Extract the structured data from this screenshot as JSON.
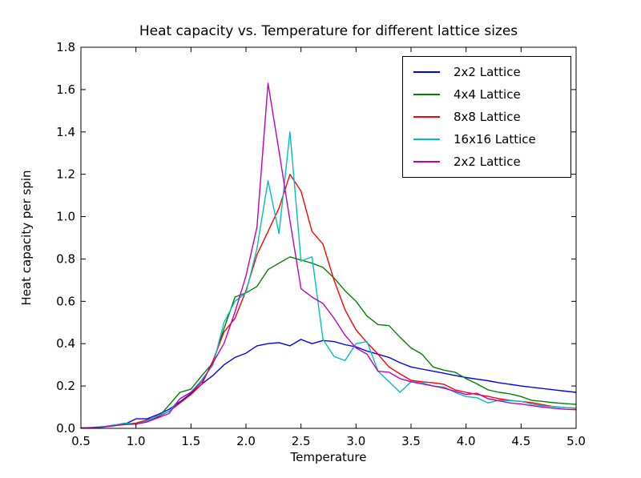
{
  "chart_data": {
    "type": "line",
    "title": "Heat capacity vs. Temperature for different lattice sizes",
    "xlabel": "Temperature",
    "ylabel": "Heat capacity per spin",
    "xlim": [
      0.5,
      5.0
    ],
    "ylim": [
      0.0,
      1.8
    ],
    "xticks": [
      "0.5",
      "1.0",
      "1.5",
      "2.0",
      "2.5",
      "3.0",
      "3.5",
      "4.0",
      "4.5",
      "5.0"
    ],
    "yticks": [
      "0.0",
      "0.2",
      "0.4",
      "0.6",
      "0.8",
      "1.0",
      "1.2",
      "1.4",
      "1.6",
      "1.8"
    ],
    "grid": false,
    "legend_position": "upper right",
    "frame_color": "#000000",
    "background_color": "#ffffff",
    "x": [
      0.5,
      0.6,
      0.7,
      0.8,
      0.9,
      1.0,
      1.1,
      1.2,
      1.3,
      1.4,
      1.5,
      1.6,
      1.7,
      1.8,
      1.9,
      2.0,
      2.1,
      2.2,
      2.3,
      2.4,
      2.5,
      2.6,
      2.7,
      2.8,
      2.9,
      3.0,
      3.1,
      3.2,
      3.3,
      3.4,
      3.5,
      3.6,
      3.7,
      3.8,
      3.9,
      4.0,
      4.1,
      4.2,
      4.3,
      4.4,
      4.5,
      4.6,
      4.7,
      4.8,
      4.9,
      5.0
    ],
    "series": [
      {
        "name": "2x2 Lattice",
        "color": "#0000ff",
        "values": [
          0.002,
          0.004,
          0.008,
          0.015,
          0.02,
          0.045,
          0.045,
          0.065,
          0.09,
          0.125,
          0.165,
          0.21,
          0.25,
          0.3,
          0.335,
          0.355,
          0.39,
          0.4,
          0.405,
          0.39,
          0.42,
          0.4,
          0.415,
          0.41,
          0.395,
          0.385,
          0.365,
          0.35,
          0.335,
          0.31,
          0.29,
          0.28,
          0.27,
          0.26,
          0.25,
          0.24,
          0.232,
          0.225,
          0.215,
          0.208,
          0.2,
          0.194,
          0.188,
          0.182,
          0.176,
          0.17
        ]
      },
      {
        "name": "4x4 Lattice",
        "color": "#008000",
        "values": [
          0.001,
          0.003,
          0.006,
          0.012,
          0.018,
          0.02,
          0.035,
          0.05,
          0.11,
          0.17,
          0.185,
          0.25,
          0.31,
          0.47,
          0.62,
          0.64,
          0.67,
          0.75,
          0.78,
          0.81,
          0.795,
          0.78,
          0.76,
          0.71,
          0.65,
          0.6,
          0.53,
          0.49,
          0.485,
          0.43,
          0.38,
          0.35,
          0.29,
          0.275,
          0.265,
          0.235,
          0.21,
          0.182,
          0.17,
          0.163,
          0.15,
          0.132,
          0.127,
          0.121,
          0.117,
          0.113
        ]
      },
      {
        "name": "8x8 Lattice",
        "color": "#ff0000",
        "values": [
          0.001,
          0.003,
          0.007,
          0.013,
          0.02,
          0.025,
          0.04,
          0.055,
          0.08,
          0.12,
          0.16,
          0.21,
          0.32,
          0.455,
          0.52,
          0.65,
          0.82,
          0.93,
          1.04,
          1.2,
          1.12,
          0.93,
          0.87,
          0.7,
          0.56,
          0.465,
          0.405,
          0.35,
          0.29,
          0.257,
          0.227,
          0.22,
          0.215,
          0.208,
          0.182,
          0.17,
          0.16,
          0.151,
          0.14,
          0.132,
          0.127,
          0.121,
          0.111,
          0.102,
          0.098,
          0.095
        ]
      },
      {
        "name": "16x16 Lattice",
        "color": "#00bfbf",
        "values": [
          0.001,
          0.004,
          0.008,
          0.015,
          0.025,
          0.02,
          0.035,
          0.06,
          0.08,
          0.14,
          0.17,
          0.23,
          0.3,
          0.5,
          0.6,
          0.64,
          0.85,
          1.17,
          0.92,
          1.4,
          0.79,
          0.81,
          0.42,
          0.34,
          0.32,
          0.4,
          0.41,
          0.27,
          0.22,
          0.17,
          0.22,
          0.215,
          0.2,
          0.195,
          0.17,
          0.15,
          0.145,
          0.12,
          0.133,
          0.13,
          0.128,
          0.114,
          0.106,
          0.102,
          0.098,
          0.096
        ]
      },
      {
        "name": "2x2 Lattice",
        "color": "#bf00bf",
        "values": [
          0.001,
          0.003,
          0.006,
          0.012,
          0.02,
          0.02,
          0.03,
          0.05,
          0.07,
          0.14,
          0.17,
          0.22,
          0.31,
          0.4,
          0.55,
          0.72,
          0.95,
          1.63,
          1.31,
          0.98,
          0.66,
          0.62,
          0.59,
          0.52,
          0.44,
          0.38,
          0.35,
          0.27,
          0.265,
          0.235,
          0.22,
          0.21,
          0.2,
          0.19,
          0.175,
          0.16,
          0.166,
          0.14,
          0.13,
          0.12,
          0.115,
          0.107,
          0.1,
          0.095,
          0.09,
          0.088
        ]
      }
    ]
  }
}
